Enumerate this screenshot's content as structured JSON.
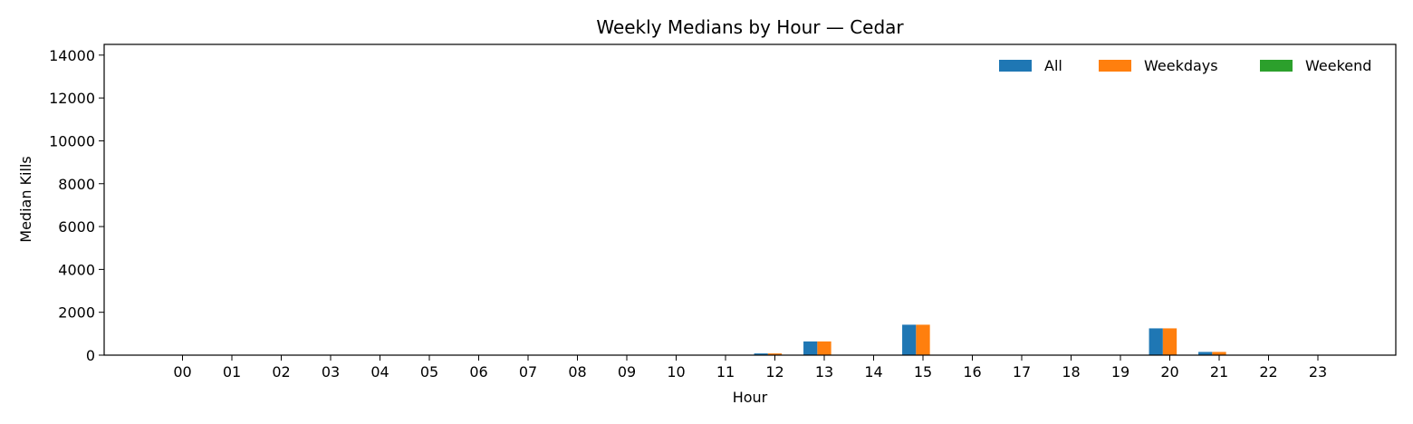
{
  "chart_data": {
    "type": "bar",
    "title": "Weekly Medians by Hour — Cedar",
    "xlabel": "Hour",
    "ylabel": "Median Kills",
    "ylim": [
      0,
      14500
    ],
    "yticks": [
      0,
      2000,
      4000,
      6000,
      8000,
      10000,
      12000,
      14000
    ],
    "ytick_labels": [
      "0",
      "2000",
      "4000",
      "6000",
      "8000",
      "10000",
      "12000",
      "14000"
    ],
    "categories": [
      "00",
      "01",
      "02",
      "03",
      "04",
      "05",
      "06",
      "07",
      "08",
      "09",
      "10",
      "11",
      "12",
      "13",
      "14",
      "15",
      "16",
      "17",
      "18",
      "19",
      "20",
      "21",
      "22",
      "23"
    ],
    "series": [
      {
        "name": "All",
        "color": "#1f77b4",
        "values": [
          0,
          0,
          0,
          0,
          0,
          0,
          0,
          0,
          0,
          0,
          0,
          0,
          80,
          640,
          0,
          1420,
          0,
          0,
          0,
          0,
          1250,
          150,
          0,
          0
        ]
      },
      {
        "name": "Weekdays",
        "color": "#ff7f0e",
        "values": [
          0,
          0,
          0,
          0,
          0,
          0,
          0,
          0,
          0,
          0,
          0,
          0,
          80,
          640,
          0,
          1420,
          0,
          0,
          0,
          0,
          1250,
          150,
          0,
          0
        ]
      },
      {
        "name": "Weekend",
        "color": "#2ca02c",
        "values": [
          0,
          0,
          0,
          0,
          0,
          0,
          0,
          0,
          0,
          0,
          0,
          0,
          0,
          0,
          0,
          0,
          0,
          0,
          0,
          0,
          0,
          0,
          0,
          0
        ]
      }
    ],
    "legend": "top-right",
    "grid": false
  }
}
